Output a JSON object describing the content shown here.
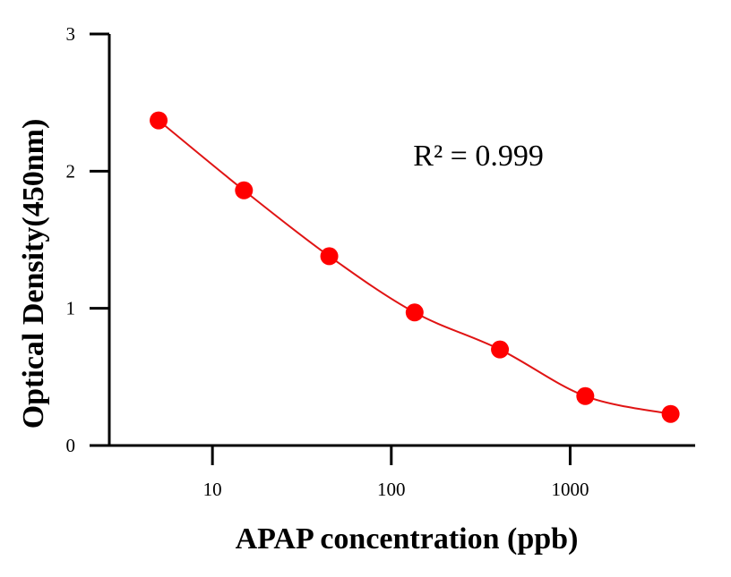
{
  "chart_data": {
    "type": "scatter",
    "title": "",
    "xlabel": "APAP concentration (ppb)",
    "ylabel": "Optical Density(450nm)",
    "xscale": "log",
    "xlim": [
      2.65,
      5000
    ],
    "ylim": [
      0,
      3
    ],
    "x_ticks": [
      10,
      100,
      1000
    ],
    "x_tick_labels": [
      "10",
      "100",
      "1000"
    ],
    "y_ticks": [
      0,
      1,
      2,
      3
    ],
    "y_tick_labels": [
      "0",
      "1",
      "2",
      "3"
    ],
    "grid": false,
    "legend": "none",
    "series": [
      {
        "x": [
          5,
          15,
          45,
          135,
          405,
          1215,
          3645
        ],
        "y": [
          2.37,
          1.86,
          1.38,
          0.97,
          0.7,
          0.36,
          0.23
        ],
        "color": "#ff0000",
        "marker": "circle",
        "fit_line": true,
        "fit_color": "#e01414"
      }
    ],
    "annotations": [
      {
        "text": "R² = 0.999",
        "x": 300,
        "y": 2.12
      }
    ]
  }
}
